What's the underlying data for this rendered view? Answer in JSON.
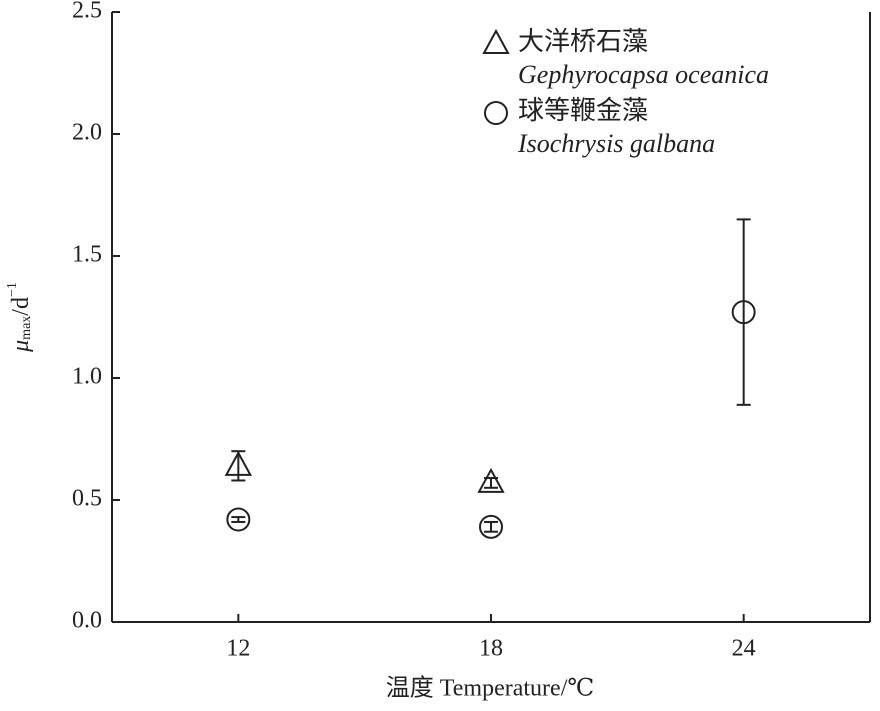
{
  "chart_data": {
    "type": "scatter",
    "x_label": "温度 Temperature/℃",
    "y_label": {
      "symbol": "μ",
      "subscript": "max",
      "unit": "/d",
      "superscript": "−1"
    },
    "xlim": [
      9,
      27
    ],
    "xticks": [
      12,
      18,
      24
    ],
    "ylim": [
      0,
      2.5
    ],
    "yticks": [
      {
        "value": 0,
        "label": "0.0"
      },
      0.5,
      {
        "value": 1,
        "label": "1.0"
      },
      1.5,
      {
        "value": 2,
        "label": "2.0"
      },
      2.5
    ],
    "series": [
      {
        "name": "大洋桥石藻",
        "latin": "Gephyrocapsa oceanica",
        "marker": "triangle",
        "color": "#222222",
        "x": [
          12,
          18
        ],
        "values": [
          0.64,
          0.57
        ],
        "errors": [
          0.06,
          0.02
        ]
      },
      {
        "name": "球等鞭金藻",
        "latin": "Isochrysis galbana",
        "marker": "circle",
        "color": "#222222",
        "x": [
          12,
          18,
          24
        ],
        "values": [
          0.42,
          0.39,
          1.27
        ],
        "errors": [
          0.01,
          0.02,
          0.38
        ]
      }
    ]
  }
}
